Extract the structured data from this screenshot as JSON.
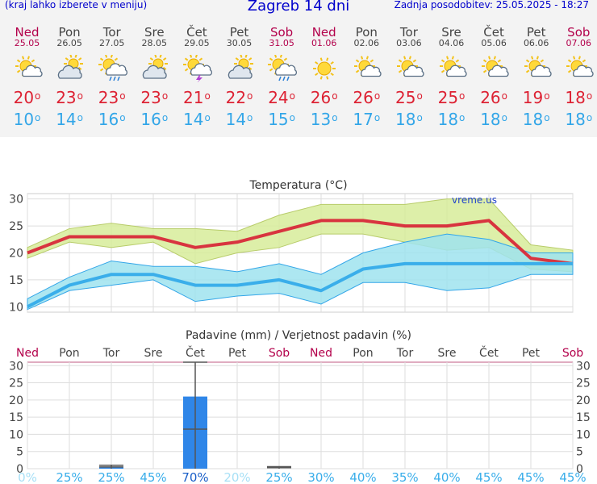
{
  "header": {
    "left": "(kraj lahko izberete v meniju)",
    "title": "Zagreb 14 dni",
    "right": "Zadnja posodobitev: 25.05.2025 - 18:27"
  },
  "days": [
    {
      "name": "Ned",
      "date": "25.05",
      "weekend": true,
      "icon": "sun-cloud",
      "tmax": "20",
      "tmin": "10"
    },
    {
      "name": "Pon",
      "date": "26.05",
      "weekend": false,
      "icon": "cloud-sun",
      "tmax": "23",
      "tmin": "14"
    },
    {
      "name": "Tor",
      "date": "27.05",
      "weekend": false,
      "icon": "sun-cloud-rain",
      "tmax": "23",
      "tmin": "16"
    },
    {
      "name": "Sre",
      "date": "28.05",
      "weekend": false,
      "icon": "cloud-sun",
      "tmax": "23",
      "tmin": "16"
    },
    {
      "name": "Čet",
      "date": "29.05",
      "weekend": false,
      "icon": "sun-cloud-thunder",
      "tmax": "21",
      "tmin": "14"
    },
    {
      "name": "Pet",
      "date": "30.05",
      "weekend": false,
      "icon": "cloud-sun",
      "tmax": "22",
      "tmin": "14"
    },
    {
      "name": "Sob",
      "date": "31.05",
      "weekend": true,
      "icon": "sun-cloud-rain",
      "tmax": "24",
      "tmin": "15"
    },
    {
      "name": "Ned",
      "date": "01.06",
      "weekend": true,
      "icon": "sun",
      "tmax": "26",
      "tmin": "13"
    },
    {
      "name": "Pon",
      "date": "02.06",
      "weekend": false,
      "icon": "sun-cloud",
      "tmax": "26",
      "tmin": "17"
    },
    {
      "name": "Tor",
      "date": "03.06",
      "weekend": false,
      "icon": "sun-cloud",
      "tmax": "25",
      "tmin": "18"
    },
    {
      "name": "Sre",
      "date": "04.06",
      "weekend": false,
      "icon": "sun-cloud",
      "tmax": "25",
      "tmin": "18"
    },
    {
      "name": "Čet",
      "date": "05.06",
      "weekend": false,
      "icon": "sun-cloud",
      "tmax": "26",
      "tmin": "18"
    },
    {
      "name": "Pet",
      "date": "06.06",
      "weekend": false,
      "icon": "sun-cloud",
      "tmax": "19",
      "tmin": "18"
    },
    {
      "name": "Sob",
      "date": "07.06",
      "weekend": true,
      "icon": "sun-cloud",
      "tmax": "18",
      "tmin": "18"
    }
  ],
  "colors": {
    "max": "#dd2233",
    "min": "#33a6e8",
    "weekend": "#b3004b",
    "maxBand": "#d7ec9a",
    "minBand": "#9fe3ee",
    "bar": "#2f86e8"
  },
  "chart_data": [
    {
      "type": "line",
      "title": "Temperatura",
      "title_unit": "(°C)",
      "watermark": "vreme.us",
      "ylim": [
        9,
        31
      ],
      "yticks": [
        10,
        15,
        20,
        25,
        30
      ],
      "grid": true,
      "series": [
        {
          "name": "max",
          "values": [
            20,
            23,
            23,
            23,
            21,
            22,
            24,
            26,
            26,
            25,
            25,
            26,
            19,
            18
          ],
          "band_low": [
            19,
            22,
            21,
            22,
            18,
            20,
            21,
            23.5,
            23.5,
            22,
            20.5,
            21,
            17,
            16.5
          ],
          "band_high": [
            21,
            24.5,
            25.5,
            24.5,
            24.5,
            24,
            27,
            29,
            29,
            29,
            30,
            30,
            21.5,
            20.5
          ]
        },
        {
          "name": "min",
          "values": [
            10,
            14,
            16,
            16,
            14,
            14,
            15,
            13,
            17,
            18,
            18,
            18,
            18,
            18
          ],
          "band_low": [
            9.5,
            13,
            14,
            15,
            11,
            12,
            12.5,
            10.5,
            14.5,
            14.5,
            13,
            13.5,
            16,
            16
          ],
          "band_high": [
            11.5,
            15.5,
            18.5,
            17.5,
            17.5,
            16.5,
            18,
            16,
            20,
            22,
            23.5,
            22.5,
            20,
            20
          ]
        }
      ]
    },
    {
      "type": "bar",
      "title": "Padavine (mm) / Verjetnost padavin (%)",
      "ylim": [
        0,
        31
      ],
      "yticks": [
        0,
        5,
        10,
        15,
        20,
        25,
        30
      ],
      "categories": [
        "Ned",
        "Pon",
        "Tor",
        "Sre",
        "Čet",
        "Pet",
        "Sob",
        "Ned",
        "Pon",
        "Tor",
        "Sre",
        "Čet",
        "Pet",
        "Sob"
      ],
      "values": [
        0,
        0,
        0.5,
        0,
        21,
        0,
        0,
        0,
        0,
        0,
        0,
        0,
        0,
        0
      ],
      "error_low": [
        null,
        null,
        0,
        null,
        0,
        null,
        0,
        null,
        null,
        null,
        null,
        null,
        null,
        null
      ],
      "error_mid": [
        null,
        null,
        0.5,
        null,
        11.5,
        null,
        0.3,
        null,
        null,
        null,
        null,
        null,
        null,
        null
      ],
      "error_high": [
        null,
        null,
        1,
        null,
        31,
        null,
        0.6,
        null,
        null,
        null,
        null,
        null,
        null,
        null
      ],
      "probability": [
        "0%",
        "25%",
        "25%",
        "45%",
        "70%",
        "20%",
        "25%",
        "30%",
        "40%",
        "35%",
        "40%",
        "45%",
        "45%",
        "45%"
      ]
    }
  ]
}
